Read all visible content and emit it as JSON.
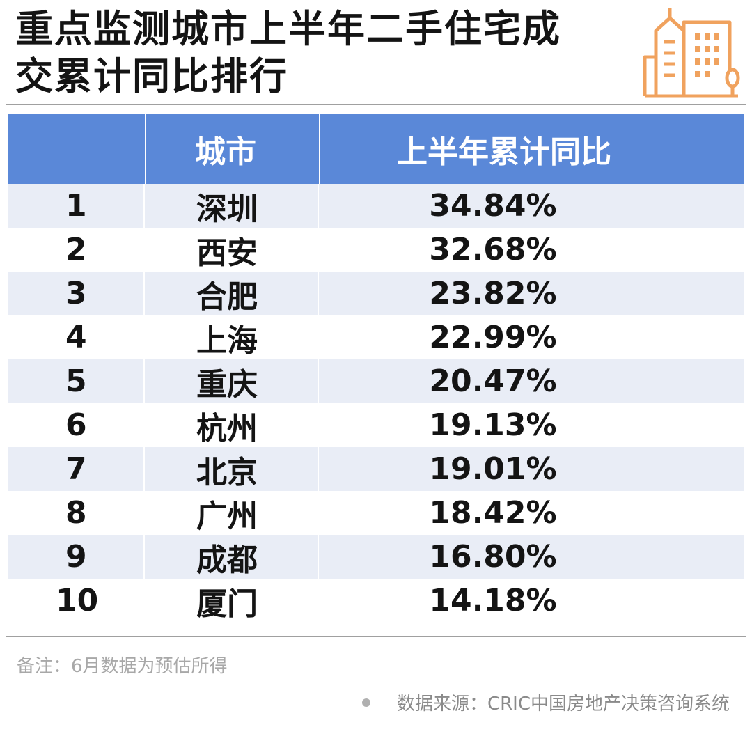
{
  "title": {
    "line1": "重点监测城市上半年二手住宅成",
    "line2": "交累计同比排行"
  },
  "colors": {
    "header_bg": "#5a88d8",
    "row_alt_bg": "#e9edf6",
    "logo_orange": "#f0a25e"
  },
  "logo": {
    "icon": "buildings-icon"
  },
  "table": {
    "headers": {
      "rank": "",
      "city": "城市",
      "value": "上半年累计同比"
    },
    "rows": [
      {
        "rank": "1",
        "city": "深圳",
        "value": "34.84%"
      },
      {
        "rank": "2",
        "city": "西安",
        "value": "32.68%"
      },
      {
        "rank": "3",
        "city": "合肥",
        "value": "23.82%"
      },
      {
        "rank": "4",
        "city": "上海",
        "value": "22.99%"
      },
      {
        "rank": "5",
        "city": "重庆",
        "value": "20.47%"
      },
      {
        "rank": "6",
        "city": "杭州",
        "value": "19.13%"
      },
      {
        "rank": "7",
        "city": "北京",
        "value": "19.01%"
      },
      {
        "rank": "8",
        "city": "广州",
        "value": "18.42%"
      },
      {
        "rank": "9",
        "city": "成都",
        "value": "16.80%"
      },
      {
        "rank": "10",
        "city": "厦门",
        "value": "14.18%"
      }
    ]
  },
  "note": "备注：6月数据为预估所得",
  "source": "数据来源：CRIC中国房地产决策咨询系统"
}
